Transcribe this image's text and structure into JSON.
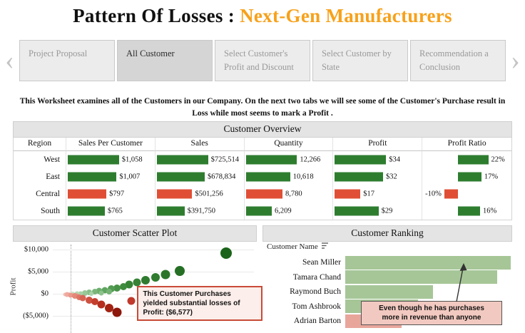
{
  "page": {
    "title_prefix": "Pattern Of Losses : ",
    "title_highlight": "Next-Gen Manufacturers",
    "accent_color": "#F7A11A",
    "description": "This Worksheet examines all of the Customers in our Company. On the next two tabs we will see some of the Customer's Purchase result in Loss while most seems to mark a Profit ."
  },
  "nav": {
    "prev_icon": "‹",
    "next_icon": "›",
    "tabs": [
      {
        "lines": [
          "Project Proposal"
        ],
        "selected": false
      },
      {
        "lines": [
          "All Customer"
        ],
        "selected": true
      },
      {
        "lines": [
          "Select Customer's",
          "Profit and Discount"
        ],
        "selected": false
      },
      {
        "lines": [
          "Select Customer by",
          "State"
        ],
        "selected": false
      },
      {
        "lines": [
          "Recommendation a",
          "Conclusion"
        ],
        "selected": false
      }
    ]
  },
  "colors": {
    "positive": "#2E7D2F",
    "negative": "#E04F35",
    "rank_positive": "#A6C697",
    "rank_negative": "#E8A69B",
    "panel_header_bg": "#E4E4E4",
    "tab_bg": "#ECECEC",
    "tab_selected_bg": "#D5D5D5",
    "note_bg": "#F2C9C0"
  },
  "chart_data": [
    {
      "type": "bar",
      "title": "Customer Overview",
      "row_header": "Region",
      "categories": [
        "West",
        "East",
        "Central",
        "South"
      ],
      "row_sentiment": [
        "positive",
        "positive",
        "negative",
        "positive"
      ],
      "series": [
        {
          "name": "Sales Per Customer",
          "values": [
            1058,
            1007,
            797,
            765
          ],
          "labels": [
            "$1,058",
            "$1,007",
            "$797",
            "$765"
          ]
        },
        {
          "name": "Sales",
          "values": [
            725514,
            678834,
            501256,
            391750
          ],
          "labels": [
            "$725,514",
            "$678,834",
            "$501,256",
            "$391,750"
          ]
        },
        {
          "name": "Quantity",
          "values": [
            12266,
            10618,
            8780,
            6209
          ],
          "labels": [
            "12,266",
            "10,618",
            "8,780",
            "6,209"
          ]
        },
        {
          "name": "Profit",
          "values": [
            34,
            32,
            17,
            29
          ],
          "labels": [
            "$34",
            "$32",
            "$17",
            "$29"
          ]
        },
        {
          "name": "Profit Ratio",
          "values": [
            22,
            17,
            -10,
            16
          ],
          "labels": [
            "22%",
            "17%",
            "-10%",
            "16%"
          ],
          "diverging": true
        }
      ]
    },
    {
      "type": "scatter",
      "title": "Customer Scatter Plot",
      "ylabel": "Profit",
      "ylim": [
        -8800,
        11200
      ],
      "yticks": [
        {
          "label": "$10,000",
          "value": 10000
        },
        {
          "label": "$5,000",
          "value": 5000
        },
        {
          "label": "$0",
          "value": 0
        },
        {
          "label": "($5,000)",
          "value": -5000
        }
      ],
      "refline_x": 9,
      "point_format": [
        "x_pct",
        "profit",
        "radius_px",
        "color"
      ],
      "points": [
        [
          86,
          9200,
          8,
          "#1B641B"
        ],
        [
          63,
          5300,
          7,
          "#256F25"
        ],
        [
          56,
          4500,
          6.5,
          "#2A752A"
        ],
        [
          51,
          3800,
          6,
          "#2F7B2F"
        ],
        [
          46,
          3100,
          6,
          "#2F7B2F"
        ],
        [
          42,
          2600,
          5.5,
          "#368336"
        ],
        [
          38,
          2100,
          5.5,
          "#368336"
        ],
        [
          35,
          1750,
          5,
          "#3E8B3E"
        ],
        [
          32,
          1400,
          5,
          "#479247"
        ],
        [
          29,
          1120,
          5,
          "#529B52"
        ],
        [
          26,
          880,
          4.5,
          "#5FA45F"
        ],
        [
          23,
          670,
          4.5,
          "#6CAD6C"
        ],
        [
          28,
          500,
          4,
          "#74B274"
        ],
        [
          21,
          500,
          4,
          "#7AB67A"
        ],
        [
          24,
          300,
          3.5,
          "#8CC28C"
        ],
        [
          18,
          360,
          4,
          "#88BF88"
        ],
        [
          16,
          240,
          4,
          "#97C897"
        ],
        [
          14,
          150,
          3.5,
          "#A5D0A5"
        ],
        [
          19,
          140,
          3,
          "#AAD2AA"
        ],
        [
          12,
          80,
          3.5,
          "#B4D8B4"
        ],
        [
          10,
          30,
          3,
          "#C2E0C2"
        ],
        [
          6,
          -80,
          2.5,
          "#F4C0B8"
        ],
        [
          8,
          -60,
          3,
          "#F3BAB1"
        ],
        [
          7,
          -160,
          3.5,
          "#EFAA9F"
        ],
        [
          10,
          -180,
          3,
          "#F0AFA4"
        ],
        [
          9,
          -300,
          3.5,
          "#EA998C"
        ],
        [
          12,
          -350,
          3.5,
          "#E89A8C"
        ],
        [
          11,
          -470,
          4,
          "#E48879"
        ],
        [
          13,
          -680,
          4,
          "#DE7666"
        ],
        [
          15,
          -950,
          4.5,
          "#D76453"
        ],
        [
          18,
          -1300,
          5,
          "#CE5140"
        ],
        [
          21,
          -1750,
          5,
          "#C43E2D"
        ],
        [
          24,
          -2350,
          5.5,
          "#B52F1E"
        ],
        [
          28,
          -3100,
          6,
          "#A32312"
        ],
        [
          32,
          -4100,
          6.5,
          "#8C170A"
        ],
        [
          39,
          -1500,
          5.5,
          "#C0392B"
        ],
        [
          98,
          -2100,
          5,
          "#C0392B"
        ]
      ],
      "annotation": {
        "lines": [
          "This Customer Purchases",
          "yielded substantial losses of",
          "Profit: ($6,577)"
        ]
      }
    },
    {
      "type": "bar",
      "title": "Customer Ranking",
      "column_header": "Customer Name",
      "categories": [
        "Sean Miller",
        "Tamara Chand",
        "Raymond Buch",
        "Tom Ashbrook",
        "Adrian Barton"
      ],
      "values_pct": [
        100,
        92,
        53,
        44,
        34
      ],
      "sentiment": [
        "positive",
        "positive",
        "positive",
        "positive",
        "negative"
      ],
      "annotation": {
        "lines": [
          "Even though he has purchases",
          "more in revenue than anyone"
        ]
      }
    }
  ]
}
